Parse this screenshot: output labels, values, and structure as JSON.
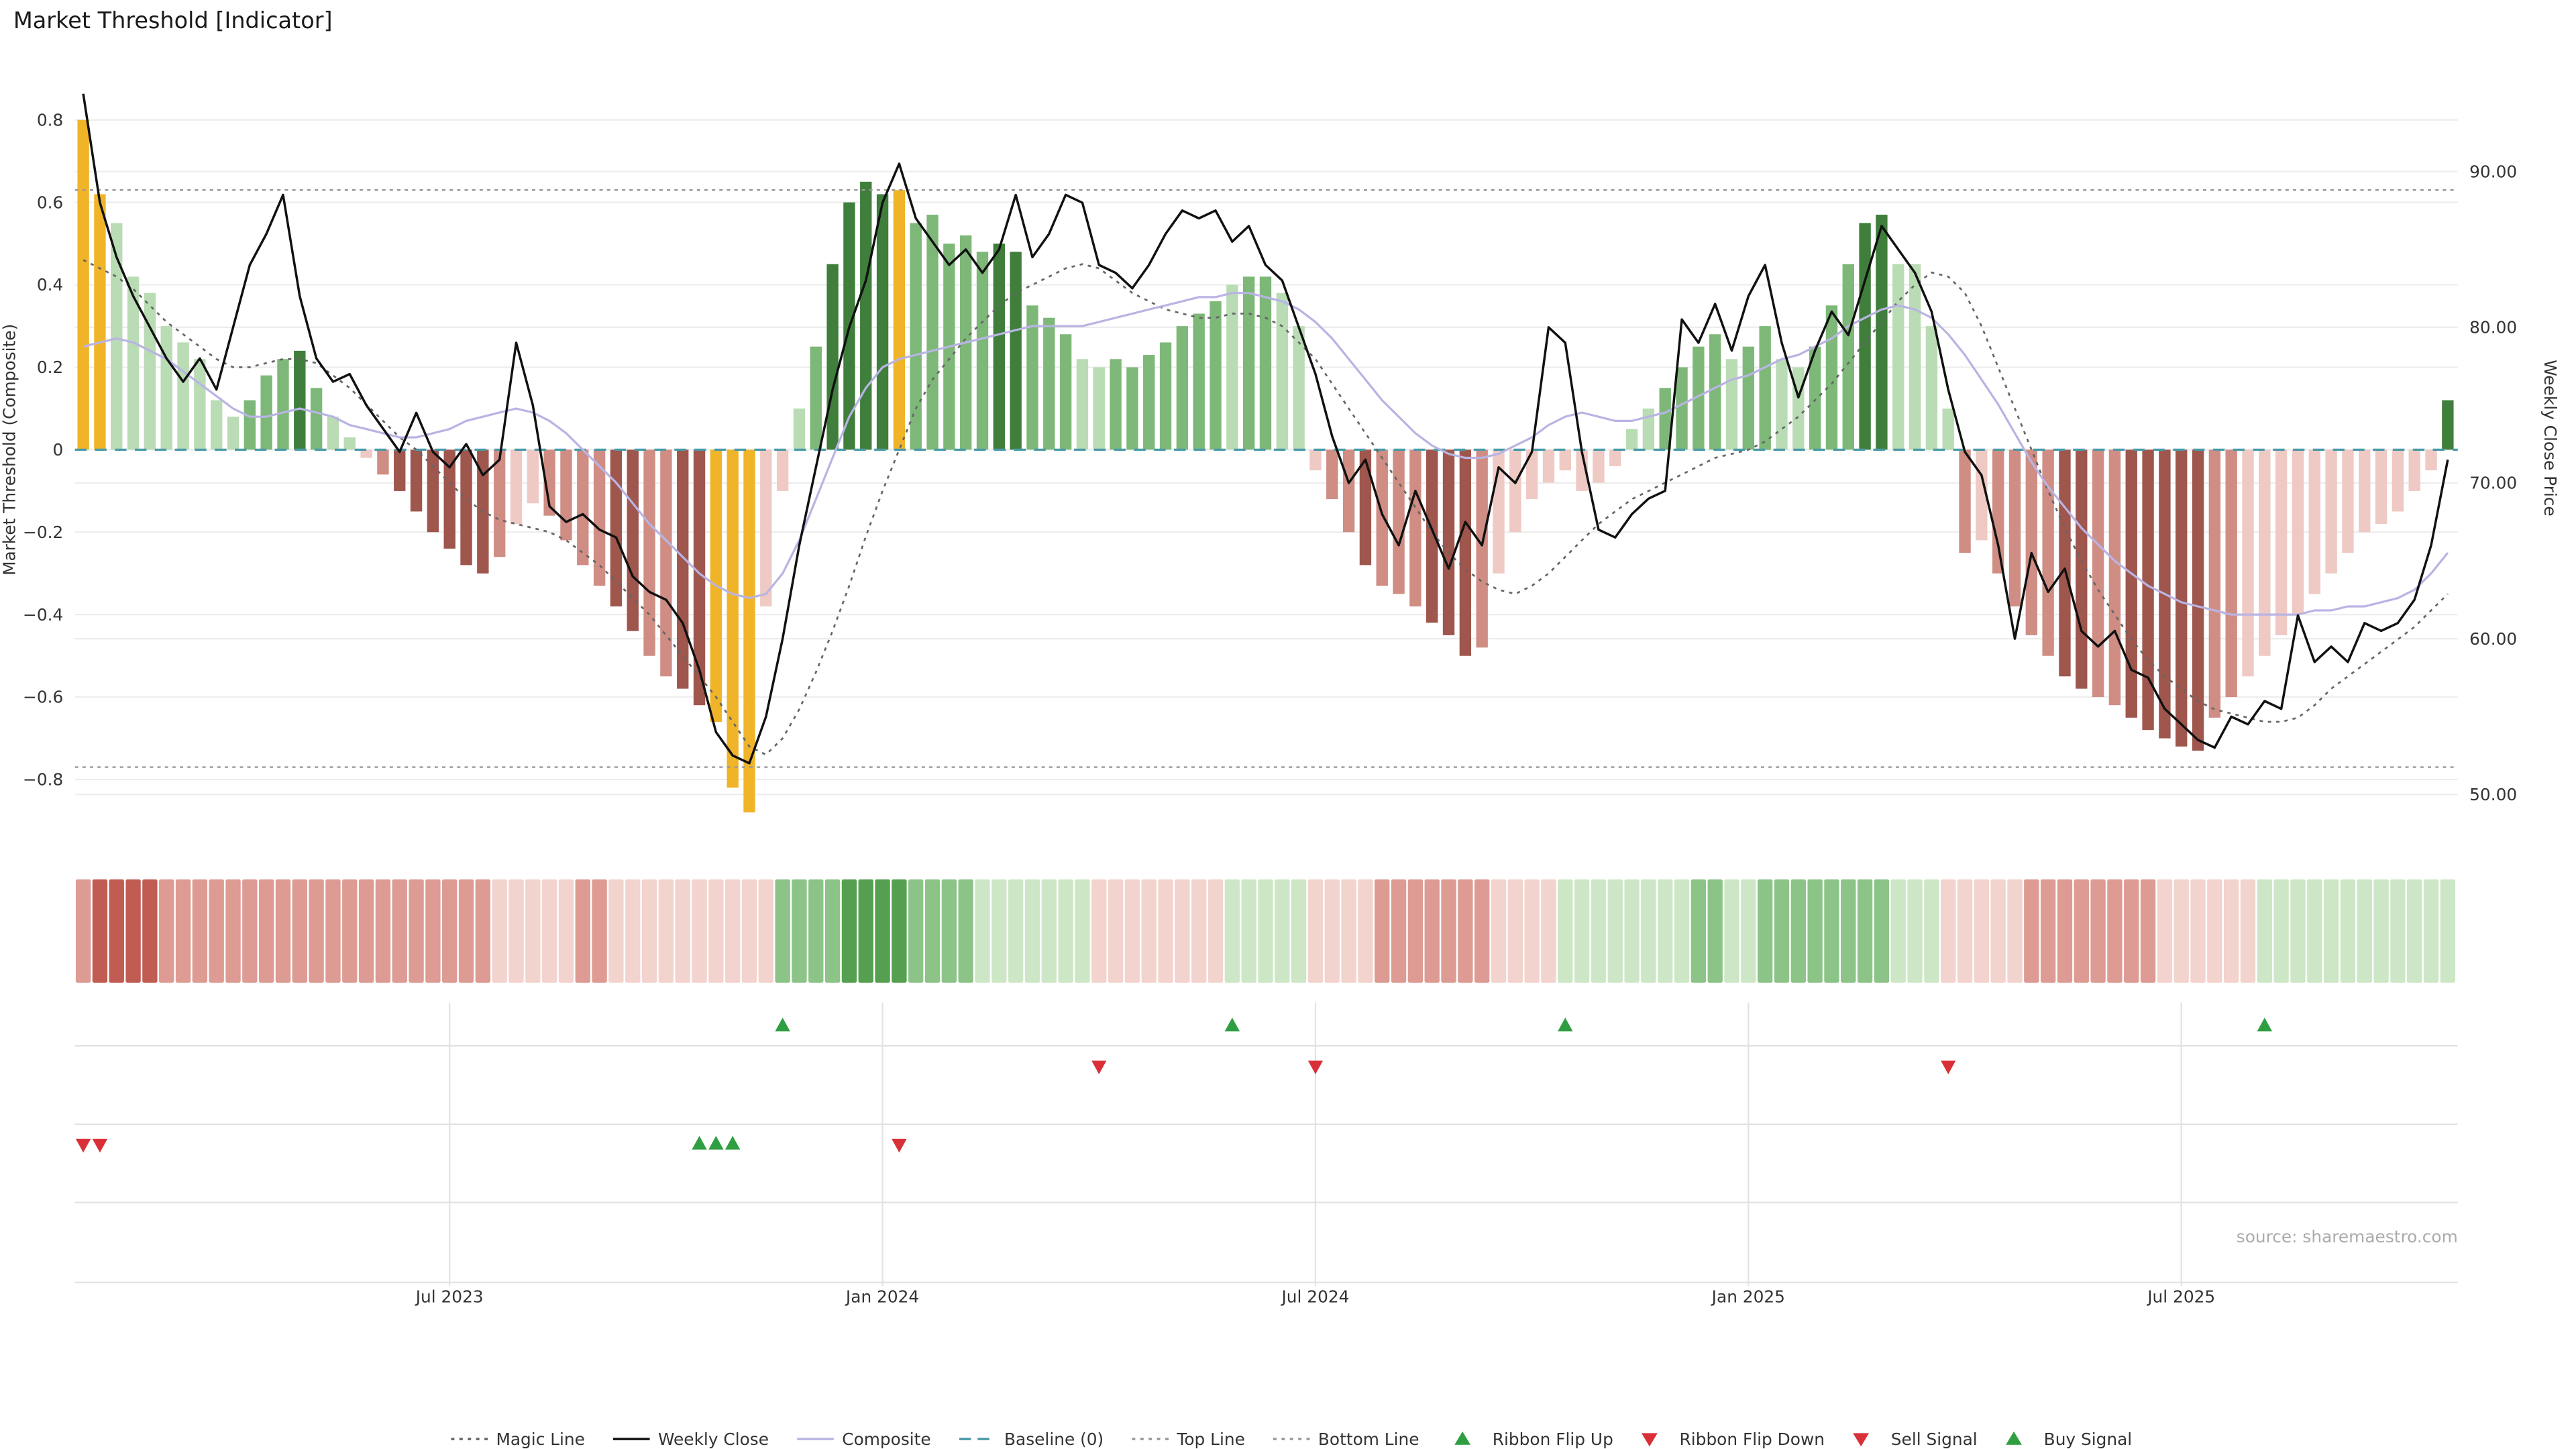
{
  "title": "Market Threshold [Indicator]",
  "source": "source: sharemaestro.com",
  "y_axis_left": {
    "label": "Market Threshold (Composite)",
    "ticks": [
      {
        "value": 0.8,
        "label": "0.8"
      },
      {
        "value": 0.6,
        "label": "0.6"
      },
      {
        "value": 0.4,
        "label": "0.4"
      },
      {
        "value": 0.2,
        "label": "0.2"
      },
      {
        "value": 0,
        "label": "0"
      },
      {
        "value": -0.2,
        "label": "−0.2"
      },
      {
        "value": -0.4,
        "label": "−0.4"
      },
      {
        "value": -0.6,
        "label": "−0.6"
      },
      {
        "value": -0.8,
        "label": "−0.8"
      }
    ]
  },
  "y_axis_right": {
    "label": "Weekly Close Price",
    "ticks": [
      {
        "value": 90,
        "label": "90.00"
      },
      {
        "value": 80,
        "label": "80.00"
      },
      {
        "value": 70,
        "label": "70.00"
      },
      {
        "value": 60,
        "label": "60.00"
      },
      {
        "value": 50,
        "label": "50.00"
      }
    ]
  },
  "x_axis": {
    "ticks": [
      {
        "index": 22,
        "label": "Jul 2023"
      },
      {
        "index": 48,
        "label": "Jan 2024"
      },
      {
        "index": 74,
        "label": "Jul 2024"
      },
      {
        "index": 100,
        "label": "Jan 2025"
      },
      {
        "index": 126,
        "label": "Jul 2025"
      }
    ]
  },
  "colors": {
    "bar_green": [
      "#b9dcb4",
      "#7eb878",
      "#3f7e3b"
    ],
    "bar_red": [
      "#efc9c3",
      "#cf8d84",
      "#9e564d"
    ],
    "highlight": "#f0b429",
    "weekly_close": "#111111",
    "composite": "#b9b4e3",
    "magic": "#666666",
    "baseline": "#4a9aa8",
    "guide": "#999999",
    "flip_up": "#2f9e41",
    "flip_down": "#d92f36",
    "ribbon_green": [
      "#cde7c6",
      "#8cc487",
      "#55a050"
    ],
    "ribbon_red": [
      "#f2d3cd",
      "#dd9b93",
      "#c05c52"
    ]
  },
  "chart_data": {
    "type": "bar",
    "subtype": "weekly bar + line combo with ribbon and signal markers",
    "frequency": "weekly",
    "ylim_left": [
      -0.93,
      0.93
    ],
    "ylim_right": [
      48,
      97
    ],
    "grid": "horizontal-faint",
    "legend_position": "bottom-center",
    "top_line": 0.63,
    "bottom_line": -0.77,
    "baseline": 0,
    "threshold": [
      0.8,
      0.62,
      0.55,
      0.42,
      0.38,
      0.3,
      0.26,
      0.22,
      0.12,
      0.08,
      0.12,
      0.18,
      0.22,
      0.24,
      0.15,
      0.08,
      0.03,
      -0.02,
      -0.06,
      -0.1,
      -0.15,
      -0.2,
      -0.24,
      -0.28,
      -0.3,
      -0.26,
      -0.18,
      -0.13,
      -0.16,
      -0.22,
      -0.28,
      -0.33,
      -0.38,
      -0.44,
      -0.5,
      -0.55,
      -0.58,
      -0.62,
      -0.66,
      -0.82,
      -0.88,
      -0.38,
      -0.1,
      0.1,
      0.25,
      0.45,
      0.6,
      0.65,
      0.62,
      0.63,
      0.55,
      0.57,
      0.5,
      0.52,
      0.48,
      0.5,
      0.48,
      0.35,
      0.32,
      0.28,
      0.22,
      0.2,
      0.22,
      0.2,
      0.23,
      0.26,
      0.3,
      0.33,
      0.36,
      0.4,
      0.42,
      0.42,
      0.38,
      0.3,
      -0.05,
      -0.12,
      -0.2,
      -0.28,
      -0.33,
      -0.35,
      -0.38,
      -0.42,
      -0.45,
      -0.5,
      -0.48,
      -0.3,
      -0.2,
      -0.12,
      -0.08,
      -0.05,
      -0.1,
      -0.08,
      -0.04,
      0.05,
      0.1,
      0.15,
      0.2,
      0.25,
      0.28,
      0.22,
      0.25,
      0.3,
      0.22,
      0.2,
      0.25,
      0.35,
      0.45,
      0.55,
      0.57,
      0.45,
      0.45,
      0.3,
      0.1,
      -0.25,
      -0.22,
      -0.3,
      -0.38,
      -0.45,
      -0.5,
      -0.55,
      -0.58,
      -0.6,
      -0.62,
      -0.65,
      -0.68,
      -0.7,
      -0.72,
      -0.73,
      -0.65,
      -0.6,
      -0.55,
      -0.5,
      -0.45,
      -0.4,
      -0.35,
      -0.3,
      -0.25,
      -0.2,
      -0.18,
      -0.15,
      -0.1,
      -0.05,
      0.12
    ],
    "bar_shades": [
      0,
      0,
      1,
      1,
      1,
      1,
      1,
      1,
      1,
      1,
      2,
      2,
      2,
      3,
      2,
      1,
      1,
      1,
      2,
      3,
      3,
      3,
      3,
      3,
      3,
      2,
      1,
      1,
      2,
      2,
      2,
      2,
      3,
      3,
      2,
      2,
      3,
      3,
      0,
      0,
      0,
      1,
      1,
      1,
      2,
      3,
      3,
      3,
      3,
      0,
      2,
      2,
      2,
      2,
      2,
      3,
      3,
      2,
      2,
      2,
      1,
      1,
      2,
      2,
      2,
      2,
      2,
      2,
      2,
      1,
      2,
      2,
      1,
      1,
      1,
      2,
      2,
      3,
      2,
      2,
      2,
      3,
      3,
      3,
      2,
      1,
      1,
      1,
      1,
      1,
      1,
      1,
      1,
      1,
      1,
      2,
      2,
      2,
      2,
      1,
      2,
      2,
      1,
      1,
      2,
      2,
      2,
      3,
      3,
      1,
      1,
      1,
      1,
      2,
      1,
      2,
      2,
      2,
      2,
      3,
      3,
      2,
      2,
      3,
      3,
      3,
      3,
      3,
      2,
      2,
      1,
      1,
      1,
      1,
      1,
      1,
      1,
      1,
      1,
      1,
      1,
      1,
      3
    ],
    "weekly_close": [
      95.0,
      88.0,
      84.5,
      82.0,
      80.0,
      78.0,
      76.5,
      78.0,
      76.0,
      80.0,
      84.0,
      86.0,
      88.5,
      82.0,
      78.0,
      76.5,
      77.0,
      75.0,
      73.5,
      72.0,
      74.5,
      72.0,
      71.0,
      72.5,
      70.5,
      71.5,
      79.0,
      75.0,
      68.5,
      67.5,
      68.0,
      67.0,
      66.5,
      64.0,
      63.0,
      62.5,
      61.0,
      58.0,
      54.0,
      52.5,
      52.0,
      55.0,
      60.0,
      66.0,
      71.0,
      76.0,
      80.0,
      83.0,
      88.0,
      90.5,
      87.0,
      85.5,
      84.0,
      85.0,
      83.5,
      85.0,
      88.5,
      84.5,
      86.0,
      88.5,
      88.0,
      84.0,
      83.5,
      82.5,
      84.0,
      86.0,
      87.5,
      87.0,
      87.5,
      85.5,
      86.5,
      84.0,
      83.0,
      80.0,
      77.0,
      73.0,
      70.0,
      71.5,
      68.0,
      66.0,
      69.5,
      67.0,
      64.5,
      67.5,
      66.0,
      71.0,
      70.0,
      72.0,
      80.0,
      79.0,
      72.0,
      67.0,
      66.5,
      68.0,
      69.0,
      69.5,
      80.5,
      79.0,
      81.5,
      78.5,
      82.0,
      84.0,
      79.0,
      75.5,
      78.5,
      81.0,
      79.5,
      83.0,
      86.5,
      85.0,
      83.5,
      81.0,
      76.0,
      72.0,
      70.5,
      66.0,
      60.0,
      65.5,
      63.0,
      64.5,
      60.5,
      59.5,
      60.5,
      58.0,
      57.5,
      55.5,
      54.5,
      53.5,
      53.0,
      55.0,
      54.5,
      56.0,
      55.5,
      61.5,
      58.5,
      59.5,
      58.5,
      61.0,
      60.5,
      61.0,
      62.5,
      66.0,
      71.5
    ],
    "composite": [
      0.25,
      0.26,
      0.27,
      0.26,
      0.24,
      0.22,
      0.19,
      0.16,
      0.13,
      0.1,
      0.08,
      0.08,
      0.09,
      0.1,
      0.09,
      0.08,
      0.06,
      0.05,
      0.04,
      0.03,
      0.03,
      0.04,
      0.05,
      0.07,
      0.08,
      0.09,
      0.1,
      0.09,
      0.07,
      0.04,
      0.0,
      -0.04,
      -0.08,
      -0.13,
      -0.18,
      -0.22,
      -0.26,
      -0.3,
      -0.33,
      -0.35,
      -0.36,
      -0.35,
      -0.3,
      -0.22,
      -0.12,
      -0.02,
      0.08,
      0.15,
      0.2,
      0.22,
      0.23,
      0.24,
      0.25,
      0.26,
      0.27,
      0.28,
      0.29,
      0.3,
      0.3,
      0.3,
      0.3,
      0.31,
      0.32,
      0.33,
      0.34,
      0.35,
      0.36,
      0.37,
      0.37,
      0.38,
      0.38,
      0.37,
      0.36,
      0.34,
      0.31,
      0.27,
      0.22,
      0.17,
      0.12,
      0.08,
      0.04,
      0.01,
      -0.01,
      -0.02,
      -0.02,
      -0.01,
      0.01,
      0.03,
      0.06,
      0.08,
      0.09,
      0.08,
      0.07,
      0.07,
      0.08,
      0.09,
      0.11,
      0.13,
      0.15,
      0.17,
      0.18,
      0.2,
      0.22,
      0.23,
      0.25,
      0.27,
      0.3,
      0.32,
      0.34,
      0.35,
      0.34,
      0.32,
      0.28,
      0.23,
      0.17,
      0.11,
      0.04,
      -0.03,
      -0.09,
      -0.14,
      -0.19,
      -0.23,
      -0.27,
      -0.3,
      -0.33,
      -0.35,
      -0.37,
      -0.38,
      -0.39,
      -0.4,
      -0.4,
      -0.4,
      -0.4,
      -0.4,
      -0.39,
      -0.39,
      -0.38,
      -0.38,
      -0.37,
      -0.36,
      -0.34,
      -0.3,
      -0.25
    ],
    "magic_line": [
      0.46,
      0.44,
      0.42,
      0.39,
      0.35,
      0.31,
      0.28,
      0.25,
      0.22,
      0.2,
      0.2,
      0.21,
      0.22,
      0.22,
      0.21,
      0.18,
      0.15,
      0.11,
      0.07,
      0.03,
      0.0,
      -0.04,
      -0.08,
      -0.12,
      -0.15,
      -0.17,
      -0.18,
      -0.19,
      -0.2,
      -0.22,
      -0.25,
      -0.28,
      -0.32,
      -0.36,
      -0.4,
      -0.45,
      -0.5,
      -0.55,
      -0.6,
      -0.66,
      -0.72,
      -0.74,
      -0.7,
      -0.63,
      -0.54,
      -0.44,
      -0.33,
      -0.21,
      -0.1,
      0.0,
      0.1,
      0.17,
      0.22,
      0.27,
      0.31,
      0.35,
      0.38,
      0.4,
      0.42,
      0.44,
      0.45,
      0.44,
      0.41,
      0.38,
      0.36,
      0.34,
      0.33,
      0.32,
      0.32,
      0.33,
      0.33,
      0.32,
      0.3,
      0.26,
      0.22,
      0.16,
      0.1,
      0.04,
      -0.02,
      -0.08,
      -0.14,
      -0.2,
      -0.25,
      -0.29,
      -0.32,
      -0.34,
      -0.35,
      -0.33,
      -0.3,
      -0.26,
      -0.22,
      -0.18,
      -0.15,
      -0.12,
      -0.1,
      -0.08,
      -0.06,
      -0.04,
      -0.02,
      -0.01,
      0.0,
      0.02,
      0.05,
      0.08,
      0.12,
      0.16,
      0.21,
      0.26,
      0.31,
      0.36,
      0.4,
      0.43,
      0.42,
      0.38,
      0.3,
      0.2,
      0.1,
      0.0,
      -0.1,
      -0.19,
      -0.27,
      -0.34,
      -0.4,
      -0.46,
      -0.51,
      -0.55,
      -0.58,
      -0.61,
      -0.63,
      -0.64,
      -0.65,
      -0.66,
      -0.66,
      -0.65,
      -0.62,
      -0.58,
      -0.55,
      -0.52,
      -0.49,
      -0.46,
      -0.43,
      -0.39,
      -0.35
    ],
    "ribbon": [
      -2,
      -3,
      -3,
      -3,
      -3,
      -2,
      -2,
      -2,
      -2,
      -2,
      -2,
      -2,
      -2,
      -2,
      -2,
      -2,
      -2,
      -2,
      -2,
      -2,
      -2,
      -2,
      -2,
      -2,
      -2,
      -1,
      -1,
      -1,
      -1,
      -1,
      -2,
      -2,
      -1,
      -1,
      -1,
      -1,
      -1,
      -1,
      -1,
      -1,
      -1,
      -1,
      2,
      2,
      2,
      2,
      3,
      3,
      3,
      3,
      2,
      2,
      2,
      2,
      1,
      1,
      1,
      1,
      1,
      1,
      1,
      -1,
      -1,
      -1,
      -1,
      -1,
      -1,
      -1,
      -1,
      1,
      1,
      1,
      1,
      1,
      -1,
      -1,
      -1,
      -1,
      -2,
      -2,
      -2,
      -2,
      -2,
      -2,
      -2,
      -1,
      -1,
      -1,
      -1,
      1,
      1,
      1,
      1,
      1,
      1,
      1,
      1,
      2,
      2,
      1,
      1,
      2,
      2,
      2,
      2,
      2,
      2,
      2,
      2,
      1,
      1,
      1,
      -1,
      -1,
      -1,
      -1,
      -1,
      -2,
      -2,
      -2,
      -2,
      -2,
      -2,
      -2,
      -2,
      -1,
      -1,
      -1,
      -1,
      -1,
      -1,
      1,
      1,
      1,
      1,
      1,
      1,
      1,
      1,
      1,
      1,
      1,
      1
    ],
    "signals": {
      "ribbon_flip_up": [
        42,
        69,
        89,
        131
      ],
      "ribbon_flip_down": [
        61,
        74,
        112
      ],
      "sell": [
        0,
        1,
        49
      ],
      "buy": [
        37,
        38,
        39
      ]
    }
  },
  "legend": {
    "items": [
      {
        "label": "Magic Line",
        "swatch": "dotted",
        "color": "#666666"
      },
      {
        "label": "Weekly Close",
        "swatch": "solid",
        "color": "#111111"
      },
      {
        "label": "Composite",
        "swatch": "solid",
        "color": "#b9b4e3"
      },
      {
        "label": "Baseline (0)",
        "swatch": "dashed",
        "color": "#4a9aa8"
      },
      {
        "label": "Top Line",
        "swatch": "dotted",
        "color": "#999999"
      },
      {
        "label": "Bottom Line",
        "swatch": "dotted",
        "color": "#999999"
      },
      {
        "label": "Ribbon Flip Up",
        "swatch": "tri-up",
        "color": "#2f9e41"
      },
      {
        "label": "Ribbon Flip Down",
        "swatch": "tri-down",
        "color": "#d92f36"
      },
      {
        "label": "Sell Signal",
        "swatch": "tri-down",
        "color": "#d92f36"
      },
      {
        "label": "Buy Signal",
        "swatch": "tri-up",
        "color": "#2f9e41"
      }
    ]
  }
}
